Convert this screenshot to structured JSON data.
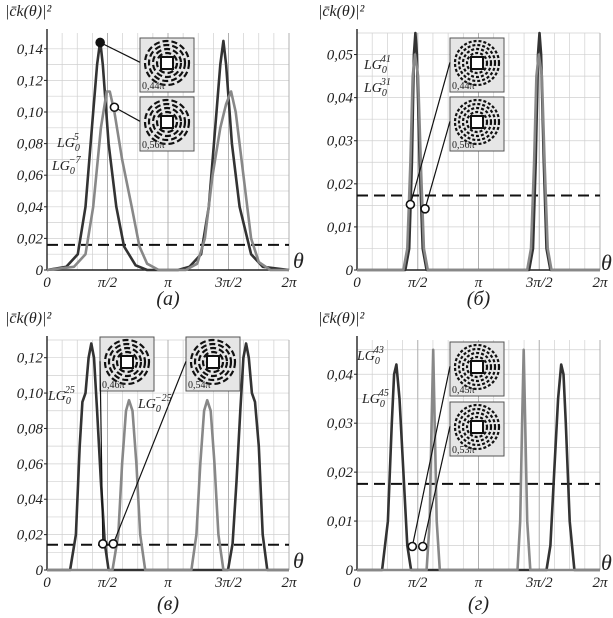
{
  "figure": {
    "ylabel": "|c̄k(θ)|²",
    "xlabel": "θ"
  },
  "chart_data": [
    {
      "type": "line",
      "panel_label": "(а)",
      "xlabel": "θ",
      "ylabel": "|c̄k(θ)|²",
      "xlim": [
        0,
        6.2832
      ],
      "ylim": [
        0,
        0.15
      ],
      "xticks": [
        0,
        1.5708,
        3.1416,
        4.7124,
        6.2832
      ],
      "xtick_labels": [
        "0",
        "π/2",
        "π",
        "3π/2",
        "2π"
      ],
      "yticks": [
        0,
        0.02,
        0.04,
        0.06,
        0.08,
        0.1,
        0.12,
        0.14
      ],
      "ytick_labels": [
        "0",
        "0,02",
        "0,04",
        "0,06",
        "0,08",
        "0,10",
        "0,12",
        "0,14"
      ],
      "threshold": 0.0159,
      "series": [
        {
          "name": "LG₀⁵",
          "color": "#333333",
          "points": [
            [
              0,
              0
            ],
            [
              0.5,
              0.002
            ],
            [
              0.8,
              0.01
            ],
            [
              1.0,
              0.04
            ],
            [
              1.2,
              0.1
            ],
            [
              1.3,
              0.13
            ],
            [
              1.38,
              0.145
            ],
            [
              1.45,
              0.13
            ],
            [
              1.6,
              0.08
            ],
            [
              1.8,
              0.04
            ],
            [
              2.0,
              0.015
            ],
            [
              2.3,
              0.003
            ],
            [
              2.6,
              0
            ],
            [
              3.4,
              0
            ],
            [
              3.7,
              0.002
            ],
            [
              4.0,
              0.01
            ],
            [
              4.2,
              0.04
            ],
            [
              4.4,
              0.1
            ],
            [
              4.5,
              0.13
            ],
            [
              4.58,
              0.145
            ],
            [
              4.65,
              0.13
            ],
            [
              4.8,
              0.08
            ],
            [
              5.0,
              0.04
            ],
            [
              5.3,
              0.01
            ],
            [
              5.6,
              0.002
            ],
            [
              6.2832,
              0
            ]
          ]
        },
        {
          "name": "LG₀⁻⁷",
          "color": "#888888",
          "points": [
            [
              0,
              0
            ],
            [
              0.7,
              0.002
            ],
            [
              1.0,
              0.01
            ],
            [
              1.2,
              0.04
            ],
            [
              1.4,
              0.09
            ],
            [
              1.55,
              0.113
            ],
            [
              1.63,
              0.113
            ],
            [
              1.75,
              0.1
            ],
            [
              1.95,
              0.07
            ],
            [
              2.2,
              0.04
            ],
            [
              2.4,
              0.015
            ],
            [
              2.6,
              0.004
            ],
            [
              2.9,
              0
            ],
            [
              3.6,
              0
            ],
            [
              3.9,
              0.004
            ],
            [
              4.1,
              0.02
            ],
            [
              4.3,
              0.06
            ],
            [
              4.5,
              0.09
            ],
            [
              4.65,
              0.105
            ],
            [
              4.78,
              0.113
            ],
            [
              4.9,
              0.1
            ],
            [
              5.1,
              0.06
            ],
            [
              5.3,
              0.02
            ],
            [
              5.5,
              0.005
            ],
            [
              5.8,
              0
            ],
            [
              6.2832,
              0
            ]
          ]
        }
      ],
      "markers": [
        {
          "x": 1.38,
          "y": 0.144
        },
        {
          "x": 1.75,
          "y": 0.103
        }
      ],
      "annotations": [
        {
          "label": "LG",
          "sup": "5",
          "sub": "0"
        },
        {
          "label": "LG",
          "sup": "−7",
          "sub": "0"
        }
      ],
      "insets": [
        "0,44π",
        "0,56π"
      ]
    },
    {
      "type": "line",
      "panel_label": "(б)",
      "xlabel": "θ",
      "ylabel": "|c̄k(θ)|²",
      "xlim": [
        0,
        6.2832
      ],
      "ylim": [
        0,
        0.055
      ],
      "xticks": [
        0,
        1.5708,
        3.1416,
        4.7124,
        6.2832
      ],
      "xtick_labels": [
        "0",
        "π/2",
        "π",
        "3π/2",
        "2π"
      ],
      "yticks": [
        0,
        0.01,
        0.02,
        0.03,
        0.04,
        0.05
      ],
      "ytick_labels": [
        "0",
        "0,01",
        "0,02",
        "0,03",
        "0,04",
        "0,05"
      ],
      "threshold": 0.0173,
      "series": [
        {
          "name": "LG₀⁴¹",
          "color": "#333333",
          "points": [
            [
              0,
              0
            ],
            [
              1.25,
              0
            ],
            [
              1.35,
              0.005
            ],
            [
              1.42,
              0.025
            ],
            [
              1.47,
              0.05
            ],
            [
              1.51,
              0.055
            ],
            [
              1.55,
              0.05
            ],
            [
              1.62,
              0.025
            ],
            [
              1.7,
              0.005
            ],
            [
              1.8,
              0
            ],
            [
              4.45,
              0
            ],
            [
              4.55,
              0.005
            ],
            [
              4.62,
              0.025
            ],
            [
              4.68,
              0.05
            ],
            [
              4.72,
              0.055
            ],
            [
              4.76,
              0.05
            ],
            [
              4.83,
              0.025
            ],
            [
              4.9,
              0.005
            ],
            [
              5.0,
              0
            ],
            [
              6.2832,
              0
            ]
          ]
        },
        {
          "name": "LG₀³¹",
          "color": "#888888",
          "points": [
            [
              0,
              0
            ],
            [
              1.2,
              0
            ],
            [
              1.3,
              0.005
            ],
            [
              1.38,
              0.025
            ],
            [
              1.44,
              0.045
            ],
            [
              1.5,
              0.05
            ],
            [
              1.58,
              0.045
            ],
            [
              1.65,
              0.025
            ],
            [
              1.73,
              0.005
            ],
            [
              1.83,
              0
            ],
            [
              4.4,
              0
            ],
            [
              4.5,
              0.005
            ],
            [
              4.58,
              0.025
            ],
            [
              4.64,
              0.045
            ],
            [
              4.7,
              0.05
            ],
            [
              4.78,
              0.045
            ],
            [
              4.85,
              0.025
            ],
            [
              4.93,
              0.005
            ],
            [
              5.03,
              0
            ],
            [
              6.2832,
              0
            ]
          ]
        }
      ],
      "markers": [
        {
          "x": 1.38,
          "y": 0.0152
        },
        {
          "x": 1.76,
          "y": 0.0142
        }
      ],
      "annotations": [
        {
          "label": "LG",
          "sup": "41",
          "sub": "0"
        },
        {
          "label": "LG",
          "sup": "31",
          "sub": "0"
        }
      ],
      "insets": [
        "0,44π",
        "0,56π"
      ]
    },
    {
      "type": "line",
      "panel_label": "(в)",
      "xlabel": "θ",
      "ylabel": "|c̄k(θ)|²",
      "xlim": [
        0,
        6.2832
      ],
      "ylim": [
        0,
        0.13
      ],
      "xticks": [
        0,
        1.5708,
        3.1416,
        4.7124,
        6.2832
      ],
      "xtick_labels": [
        "0",
        "π/2",
        "π",
        "3π/2",
        "2π"
      ],
      "yticks": [
        0,
        0.02,
        0.04,
        0.06,
        0.08,
        0.1,
        0.12
      ],
      "ytick_labels": [
        "0",
        "0,02",
        "0,04",
        "0,06",
        "0,08",
        "0,10",
        "0,12"
      ],
      "threshold": 0.0143,
      "series": [
        {
          "name": "LG₀²⁵",
          "color": "#333333",
          "points": [
            [
              0,
              0
            ],
            [
              0.6,
              0
            ],
            [
              0.75,
              0.02
            ],
            [
              0.85,
              0.07
            ],
            [
              0.92,
              0.095
            ],
            [
              1.0,
              0.1
            ],
            [
              1.08,
              0.12
            ],
            [
              1.15,
              0.128
            ],
            [
              1.22,
              0.12
            ],
            [
              1.3,
              0.09
            ],
            [
              1.4,
              0.05
            ],
            [
              1.5,
              0.015
            ],
            [
              1.6,
              0
            ],
            [
              4.7,
              0
            ],
            [
              4.82,
              0.015
            ],
            [
              4.92,
              0.05
            ],
            [
              5.02,
              0.09
            ],
            [
              5.1,
              0.12
            ],
            [
              5.17,
              0.128
            ],
            [
              5.24,
              0.12
            ],
            [
              5.32,
              0.1
            ],
            [
              5.4,
              0.095
            ],
            [
              5.5,
              0.07
            ],
            [
              5.6,
              0.02
            ],
            [
              5.72,
              0
            ],
            [
              6.2832,
              0
            ]
          ]
        },
        {
          "name": "LG₀⁻²⁵",
          "color": "#888888",
          "points": [
            [
              0,
              0
            ],
            [
              1.7,
              0
            ],
            [
              1.85,
              0.02
            ],
            [
              1.95,
              0.06
            ],
            [
              2.05,
              0.09
            ],
            [
              2.13,
              0.096
            ],
            [
              2.22,
              0.09
            ],
            [
              2.32,
              0.06
            ],
            [
              2.42,
              0.02
            ],
            [
              2.55,
              0
            ],
            [
              3.75,
              0
            ],
            [
              3.88,
              0.02
            ],
            [
              3.98,
              0.06
            ],
            [
              4.08,
              0.09
            ],
            [
              4.16,
              0.096
            ],
            [
              4.25,
              0.09
            ],
            [
              4.35,
              0.06
            ],
            [
              4.45,
              0.02
            ],
            [
              4.58,
              0
            ],
            [
              6.2832,
              0
            ]
          ]
        }
      ],
      "markers": [
        {
          "x": 1.45,
          "y": 0.0148
        },
        {
          "x": 1.72,
          "y": 0.0148
        }
      ],
      "annotations": [
        {
          "label": "LG",
          "sup": "25",
          "sub": "0"
        },
        {
          "label": "LG",
          "sup": "−25",
          "sub": "0"
        }
      ],
      "insets": [
        "0,46π",
        "0,54π"
      ]
    },
    {
      "type": "line",
      "panel_label": "(г)",
      "xlabel": "θ",
      "ylabel": "|c̄k(θ)|²",
      "xlim": [
        0,
        6.2832
      ],
      "ylim": [
        0,
        0.047
      ],
      "xticks": [
        0,
        1.5708,
        3.1416,
        4.7124,
        6.2832
      ],
      "xtick_labels": [
        "0",
        "π/2",
        "π",
        "3π/2",
        "2π"
      ],
      "yticks": [
        0,
        0.01,
        0.02,
        0.03,
        0.04
      ],
      "ytick_labels": [
        "0",
        "0,01",
        "0,02",
        "0,03",
        "0,04"
      ],
      "threshold": 0.0176,
      "series": [
        {
          "name": "LG₀⁴⁵",
          "color": "#333333",
          "points": [
            [
              0,
              0
            ],
            [
              0.65,
              0
            ],
            [
              0.8,
              0.01
            ],
            [
              0.9,
              0.03
            ],
            [
              0.96,
              0.04
            ],
            [
              1.02,
              0.042
            ],
            [
              1.1,
              0.035
            ],
            [
              1.2,
              0.02
            ],
            [
              1.3,
              0.005
            ],
            [
              1.4,
              0
            ],
            [
              4.9,
              0
            ],
            [
              5.0,
              0.005
            ],
            [
              5.1,
              0.02
            ],
            [
              5.2,
              0.035
            ],
            [
              5.28,
              0.042
            ],
            [
              5.34,
              0.04
            ],
            [
              5.4,
              0.03
            ],
            [
              5.5,
              0.01
            ],
            [
              5.62,
              0
            ],
            [
              6.2832,
              0
            ]
          ]
        },
        {
          "name": "LG₀⁴³",
          "color": "#888888",
          "points": [
            [
              0,
              0
            ],
            [
              1.8,
              0
            ],
            [
              1.88,
              0.01
            ],
            [
              1.93,
              0.03
            ],
            [
              1.97,
              0.045
            ],
            [
              2.01,
              0.03
            ],
            [
              2.06,
              0.01
            ],
            [
              2.14,
              0
            ],
            [
              4.15,
              0
            ],
            [
              4.22,
              0.01
            ],
            [
              4.27,
              0.03
            ],
            [
              4.31,
              0.045
            ],
            [
              4.35,
              0.03
            ],
            [
              4.4,
              0.01
            ],
            [
              4.48,
              0
            ],
            [
              6.2832,
              0
            ]
          ]
        }
      ],
      "markers": [
        {
          "x": 1.43,
          "y": 0.0048
        },
        {
          "x": 1.7,
          "y": 0.0048
        }
      ],
      "annotations": [
        {
          "label": "LG",
          "sup": "43",
          "sub": "0"
        },
        {
          "label": "LG",
          "sup": "45",
          "sub": "0"
        }
      ],
      "insets": [
        "0,45π",
        "0,53π"
      ]
    }
  ]
}
